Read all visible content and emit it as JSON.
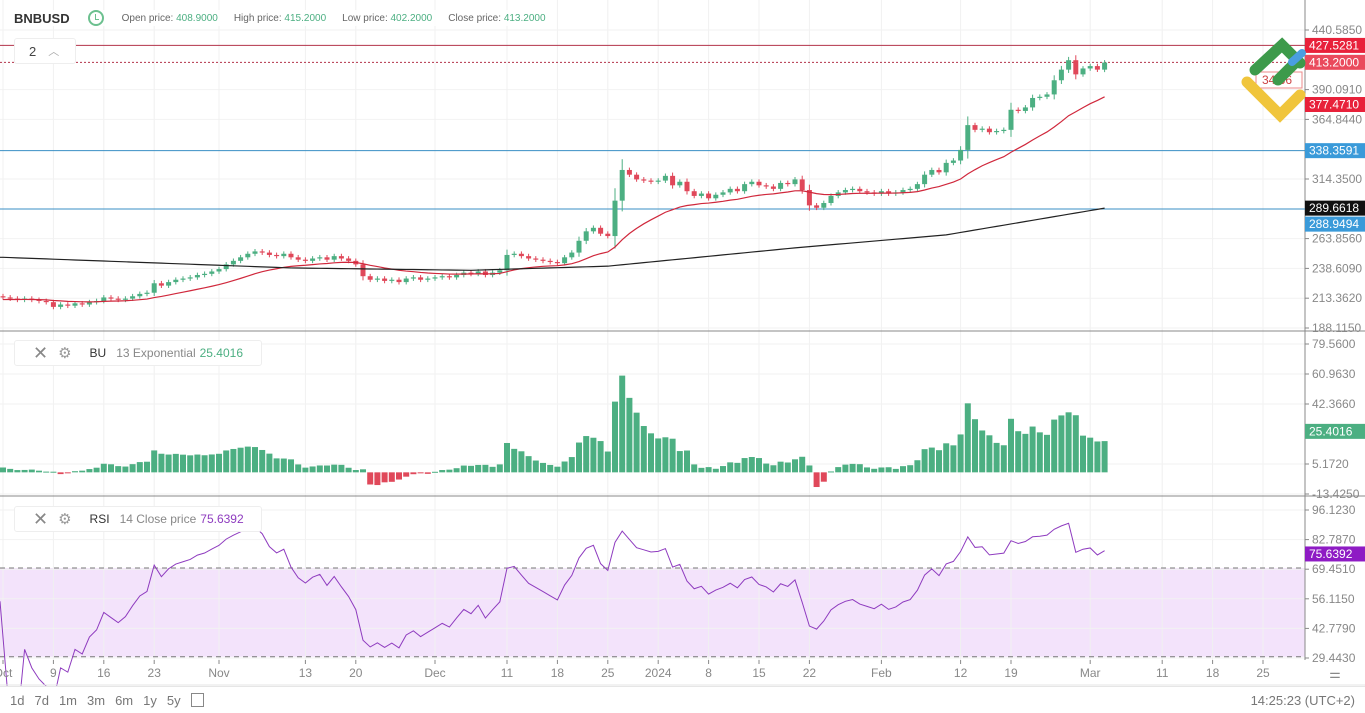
{
  "header": {
    "symbol": "BNBUSD",
    "clock_icon": "clock-icon",
    "open_label": "Open price:",
    "open": "408.9000",
    "high_label": "High price:",
    "high": "415.2000",
    "low_label": "Low price:",
    "low": "402.2000",
    "close_label": "Close price:",
    "close": "413.2000"
  },
  "stack": {
    "count": "2",
    "icon": "chevron-up-icon"
  },
  "colors": {
    "up": "#4caf82",
    "down": "#e0485a",
    "ema": "#d0283c",
    "ma": "#222222",
    "rsi": "#8e3bbf",
    "hline_blue": "#3a8fc4",
    "hline_red": "#b2334a",
    "rsi_band": "#f3e3fb"
  },
  "price_axis": {
    "ticks": [
      "440.5850",
      "390.0910",
      "364.8440",
      "314.3500",
      "263.8560",
      "238.6090",
      "213.3620",
      "188.1150"
    ],
    "tick_values": [
      440.585,
      390.091,
      364.844,
      314.35,
      263.856,
      238.609,
      213.362,
      188.115
    ],
    "labels": [
      {
        "text": "427.5281",
        "value": 427.5281,
        "bg": "#e8213a",
        "line": true
      },
      {
        "text": "413.2000",
        "value": 413.2,
        "bg": "#ea4a5c",
        "line": false
      },
      {
        "text": "377.4710",
        "value": 377.471,
        "bg": "#e8213a",
        "line": false
      },
      {
        "text": "338.3591",
        "value": 338.3591,
        "bg": "#3a9ad9",
        "line": true
      },
      {
        "text": "289.6618",
        "value": 289.6618,
        "bg": "#111111",
        "line": false
      },
      {
        "text": "288.9494",
        "value": 288.9494,
        "bg": "#3a9ad9",
        "line": true
      }
    ],
    "countdown": "34:36"
  },
  "bu": {
    "close_icon": "close-icon",
    "gear_icon": "gear-icon",
    "name": "BU",
    "params": "13 Exponential",
    "value": "25.4016",
    "ticks": [
      "79.5600",
      "60.9630",
      "42.3660",
      "5.1720",
      "-13.4250"
    ],
    "tick_values": [
      79.56,
      60.963,
      42.366,
      5.172,
      -13.425
    ],
    "label": "25.4016"
  },
  "rsi": {
    "close_icon": "close-icon",
    "gear_icon": "gear-icon",
    "name": "RSI",
    "params": "14 Close price",
    "value": "75.6392",
    "ticks": [
      "96.1230",
      "82.7870",
      "69.4510",
      "56.1150",
      "42.7790",
      "29.4430"
    ],
    "tick_values": [
      96.123,
      82.787,
      69.451,
      56.115,
      42.779,
      29.443
    ],
    "label": "75.6392",
    "upper": 70,
    "lower": 30
  },
  "chart_data": {
    "type": "candlestick",
    "interval": "1 day",
    "start": "2023-10-02",
    "end": "2024-03-03",
    "closes": [
      214,
      213,
      212,
      213,
      212,
      211,
      210,
      206,
      208,
      207,
      209,
      208,
      210,
      211,
      214,
      213,
      212,
      213,
      215,
      217,
      218,
      226,
      224,
      227,
      229,
      230,
      231,
      233,
      234,
      236,
      238,
      242,
      245,
      248,
      251,
      253,
      252,
      250,
      249,
      251,
      248,
      246,
      245,
      247,
      248,
      246,
      249,
      247,
      245,
      242,
      232,
      229,
      230,
      228,
      229,
      227,
      230,
      231,
      229,
      230,
      231,
      232,
      231,
      233,
      235,
      234,
      236,
      233,
      235,
      237,
      250,
      251,
      249,
      247,
      246,
      245,
      244,
      243,
      248,
      252,
      262,
      270,
      273,
      268,
      266,
      296,
      322,
      318,
      314,
      313,
      312,
      313,
      317,
      309,
      312,
      304,
      300,
      302,
      298,
      301,
      303,
      306,
      304,
      310,
      312,
      309,
      308,
      306,
      311,
      310,
      314,
      305,
      292,
      290,
      294,
      300,
      303,
      305,
      306,
      304,
      303,
      302,
      304,
      302,
      303,
      305,
      306,
      310,
      318,
      322,
      320,
      328,
      330,
      339,
      360,
      356,
      357,
      354,
      355,
      356,
      373,
      372,
      375,
      383,
      384,
      386,
      398,
      407,
      415,
      403,
      408,
      410,
      407,
      413
    ],
    "ma_long": [
      [
        0,
        248
      ],
      [
        40,
        239
      ],
      [
        65,
        237
      ],
      [
        84,
        240.5
      ],
      [
        110,
        256
      ],
      [
        131,
        267
      ],
      [
        153,
        289.66
      ]
    ],
    "x_ticks": [
      {
        "t": "Oct",
        "d": 0
      },
      {
        "t": "9",
        "d": 7
      },
      {
        "t": "16",
        "d": 14
      },
      {
        "t": "23",
        "d": 21
      },
      {
        "t": "Nov",
        "d": 30
      },
      {
        "t": "13",
        "d": 42
      },
      {
        "t": "20",
        "d": 49
      },
      {
        "t": "Dec",
        "d": 60
      },
      {
        "t": "11",
        "d": 70
      },
      {
        "t": "18",
        "d": 77
      },
      {
        "t": "25",
        "d": 84
      },
      {
        "t": "2024",
        "d": 91
      },
      {
        "t": "8",
        "d": 98
      },
      {
        "t": "15",
        "d": 105
      },
      {
        "t": "22",
        "d": 112
      },
      {
        "t": "Feb",
        "d": 122
      },
      {
        "t": "12",
        "d": 133
      },
      {
        "t": "19",
        "d": 140
      },
      {
        "t": "Mar",
        "d": 151
      },
      {
        "t": "11",
        "d": 161
      },
      {
        "t": "18",
        "d": 168
      },
      {
        "t": "25",
        "d": 175
      }
    ]
  },
  "ranges": [
    "1d",
    "7d",
    "1m",
    "3m",
    "6m",
    "1y",
    "5y"
  ],
  "calendar_icon": "calendar-icon",
  "settings_icon": "axis-settings-icon",
  "time": "14:25:23 (UTC+2)"
}
